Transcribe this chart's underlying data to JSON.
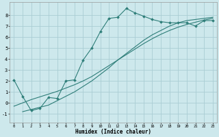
{
  "xlabel": "Humidex (Indice chaleur)",
  "background_color": "#cde8ec",
  "grid_color": "#aacdd4",
  "line_color": "#2d7d78",
  "xlim": [
    -0.5,
    23.5
  ],
  "ylim": [
    -1.8,
    9.2
  ],
  "xticks": [
    0,
    1,
    2,
    3,
    4,
    5,
    6,
    7,
    8,
    9,
    10,
    11,
    12,
    13,
    14,
    15,
    16,
    17,
    18,
    19,
    20,
    21,
    22,
    23
  ],
  "yticks": [
    -1,
    0,
    1,
    2,
    3,
    4,
    5,
    6,
    7,
    8
  ],
  "line1_x": [
    0,
    1,
    2,
    3,
    4,
    5,
    6,
    7,
    8,
    9,
    10,
    11,
    12,
    13,
    14,
    15,
    16,
    17,
    18,
    19,
    20,
    21,
    22,
    23
  ],
  "line1_y": [
    2.1,
    0.6,
    -0.7,
    -0.5,
    0.5,
    0.4,
    2.0,
    2.1,
    3.9,
    5.0,
    6.5,
    7.7,
    7.8,
    8.6,
    8.2,
    7.9,
    7.6,
    7.4,
    7.3,
    7.3,
    7.3,
    7.0,
    7.5,
    7.5
  ],
  "line2_x": [
    1,
    2,
    3,
    4,
    5,
    6,
    7,
    8,
    9,
    10,
    11,
    12,
    13,
    14,
    15,
    16,
    17,
    18,
    19,
    20,
    21,
    22,
    23
  ],
  "line2_y": [
    -0.8,
    -0.6,
    -0.4,
    -0.2,
    0.2,
    0.6,
    1.0,
    1.5,
    2.0,
    2.6,
    3.2,
    3.9,
    4.5,
    5.1,
    5.7,
    6.2,
    6.6,
    7.0,
    7.3,
    7.5,
    7.6,
    7.7,
    7.8
  ],
  "line3_x": [
    0,
    1,
    2,
    3,
    4,
    5,
    6,
    7,
    8,
    9,
    10,
    11,
    12,
    13,
    14,
    15,
    16,
    17,
    18,
    19,
    20,
    21,
    22,
    23
  ],
  "line3_y": [
    -0.3,
    0.0,
    0.3,
    0.55,
    0.8,
    1.05,
    1.35,
    1.65,
    2.0,
    2.4,
    2.9,
    3.4,
    3.9,
    4.4,
    4.9,
    5.4,
    5.85,
    6.25,
    6.6,
    6.9,
    7.15,
    7.35,
    7.55,
    7.7
  ]
}
